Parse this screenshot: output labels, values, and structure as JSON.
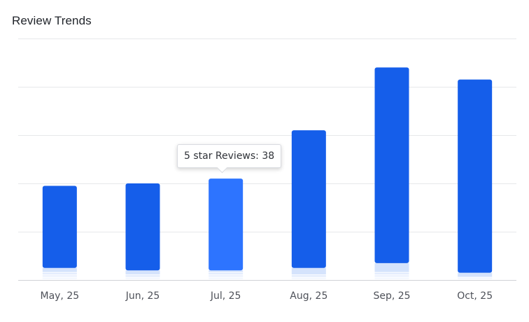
{
  "title": "Review Trends",
  "tooltip": {
    "label": "5 star Reviews",
    "value": 38,
    "text": "5 star Reviews: 38",
    "active_category": "Jul, 25"
  },
  "colors": {
    "five_star": "#155eea",
    "five_star_hover": "#2d74ff",
    "stack_light": [
      "#d5e3fc",
      "#e3ecfd",
      "#ecf2fe",
      "#f4f8ff"
    ],
    "grid": "#e7e8ea",
    "axis": "#d0d2d6",
    "tick_text": "#4e5159"
  },
  "chart_data": {
    "type": "bar",
    "stacked": true,
    "categories": [
      "May, 25",
      "Jun, 25",
      "Jul, 25",
      "Aug, 25",
      "Sep, 25",
      "Oct, 25"
    ],
    "series": [
      {
        "values": [
          1,
          1,
          1,
          1,
          1,
          1
        ]
      },
      {
        "values": [
          1,
          0,
          1,
          0,
          1,
          0
        ]
      },
      {
        "values": [
          1,
          1,
          1,
          1,
          1,
          0
        ]
      },
      {
        "values": [
          2,
          2,
          1,
          3,
          4,
          2
        ]
      },
      {
        "name": "5 star Reviews",
        "values": [
          34,
          36,
          38,
          57,
          81,
          80
        ]
      }
    ],
    "ylim": [
      0,
      100
    ],
    "y_gridlines": [
      0,
      20,
      40,
      60,
      80,
      100
    ],
    "y_tick_labels_visible": false,
    "grid": true,
    "legend": "none"
  }
}
